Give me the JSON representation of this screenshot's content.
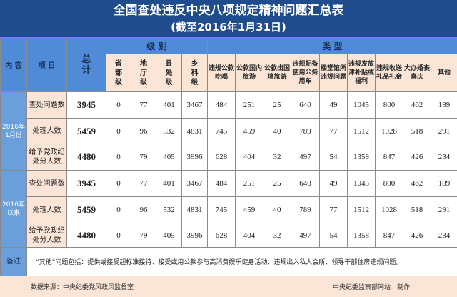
{
  "title": "全国查处违反中央八项规定精神问题汇总表",
  "subtitle": "(截至2016年1月31日)",
  "headers": {
    "content": "内 容",
    "item": "项 目",
    "total": "总\n计",
    "level": "级  别",
    "type": "类  型",
    "levels": [
      "省\n部\n级",
      "地\n厅\n级",
      "县\n处\n级",
      "乡\n科\n级"
    ],
    "types": [
      "违规公款\n吃喝",
      "公款国内\n旅游",
      "公款出国\n境旅游",
      "违规配备\n使用公务\n用车",
      "楼堂馆所\n违规问题",
      "违规发放\n津补贴或\n福利",
      "违规收送\n礼品礼金",
      "大办婚丧\n喜庆",
      "其他"
    ]
  },
  "groups": [
    {
      "label": "2016年\n1月份",
      "rows": [
        {
          "item": "查处问题数",
          "total": "3945",
          "values": [
            "0",
            "77",
            "401",
            "3467",
            "484",
            "251",
            "25",
            "640",
            "49",
            "1045",
            "800",
            "462",
            "189"
          ]
        },
        {
          "item": "处理人数",
          "total": "5459",
          "values": [
            "0",
            "96",
            "532",
            "4831",
            "745",
            "459",
            "40",
            "789",
            "77",
            "1512",
            "1028",
            "518",
            "291"
          ]
        },
        {
          "item": "给予党政纪\n处分人数",
          "total": "4480",
          "values": [
            "0",
            "79",
            "405",
            "3996",
            "628",
            "404",
            "32",
            "497",
            "54",
            "1358",
            "847",
            "426",
            "234"
          ]
        }
      ]
    },
    {
      "label": "2016年\n以来",
      "rows": [
        {
          "item": "查处问题数",
          "total": "3945",
          "values": [
            "0",
            "77",
            "401",
            "3467",
            "484",
            "251",
            "25",
            "640",
            "49",
            "1045",
            "800",
            "462",
            "189"
          ]
        },
        {
          "item": "处理人数",
          "total": "5459",
          "values": [
            "0",
            "96",
            "532",
            "4831",
            "745",
            "459",
            "40",
            "789",
            "77",
            "1512",
            "1028",
            "518",
            "291"
          ]
        },
        {
          "item": "给予党政纪\n处分人数",
          "total": "4480",
          "values": [
            "0",
            "79",
            "405",
            "3996",
            "628",
            "404",
            "32",
            "497",
            "54",
            "1358",
            "847",
            "426",
            "234"
          ]
        }
      ]
    }
  ],
  "remark": {
    "label": "备注",
    "text": "“其他”问题包括：提供或接受超标准接待、接受或用公款参与高消费娱乐健身活动、违规出入私人会所、领导干部住房违规问题。"
  },
  "footer": {
    "source": "数据来源：中央纪委党风政风监督室",
    "maker": "中央纪委监察部网站　制作"
  },
  "colors": {
    "title_bg": "#1e4c8c",
    "header_blue": "#4f8bd6",
    "peach": "#fbe5d6",
    "side_blue": "#6a9fdc"
  }
}
